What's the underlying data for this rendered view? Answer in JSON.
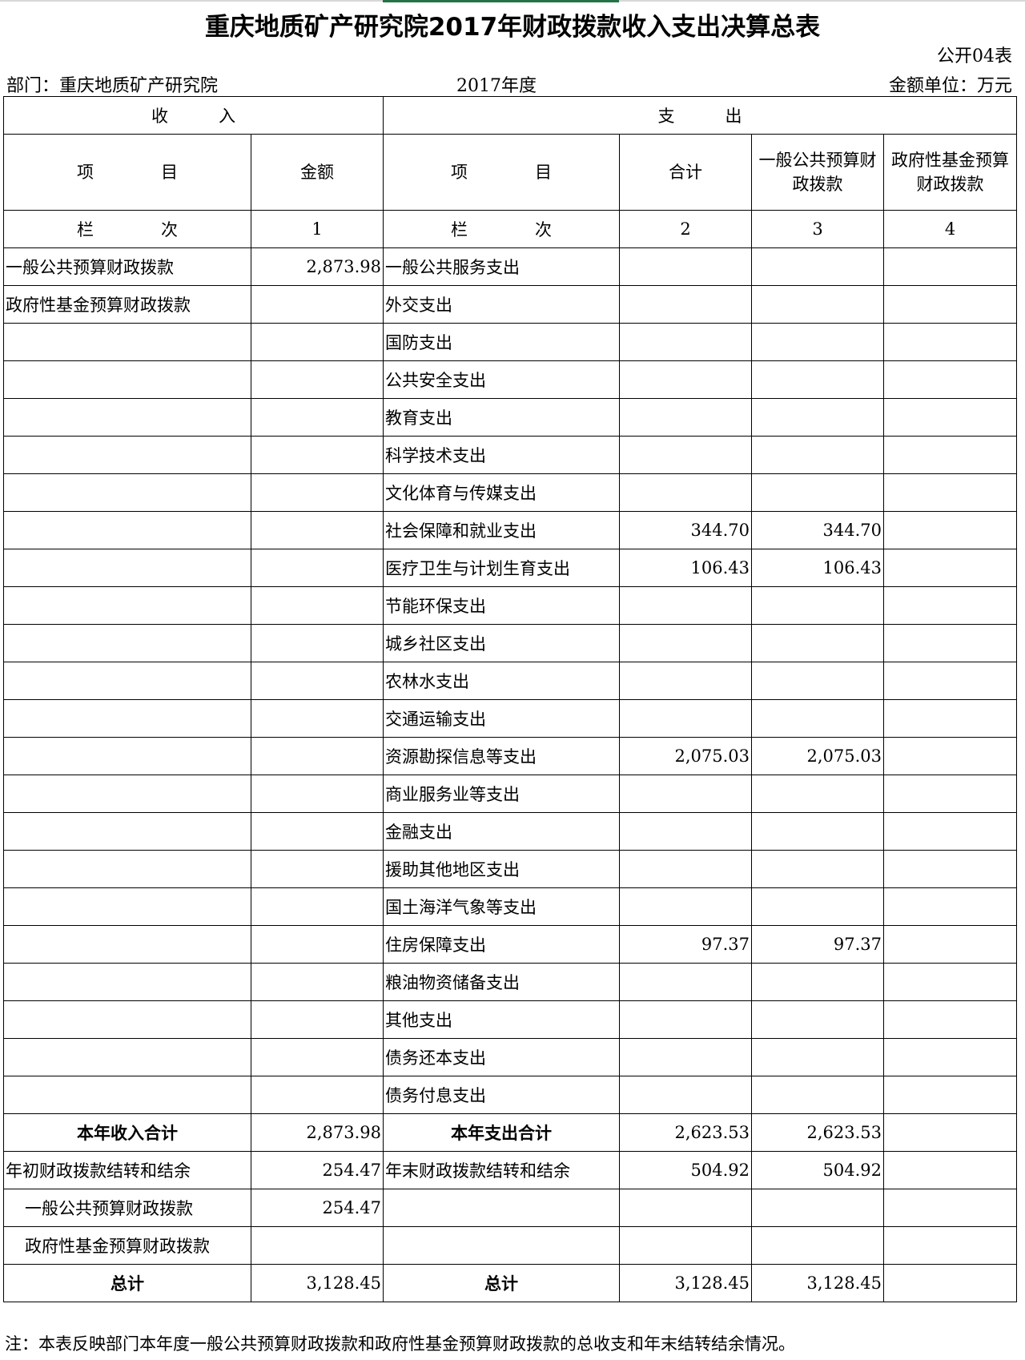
{
  "title": "重庆地质矿产研究院2017年财政拨款收入支出决算总表",
  "form_no": "公开04表",
  "department": "部门：重庆地质矿产研究院",
  "year": "2017年度",
  "unit": "金额单位：万元",
  "headers": {
    "income": "收　　　入",
    "expense": "支　　　出",
    "item": "项　　　　目",
    "amount": "金额",
    "item2": "项　　　　目",
    "total": "合计",
    "general": "一般公共预算财政拨款",
    "fund": "政府性基金预算财政拨款",
    "col_label": "栏　　　　次",
    "col_label2": "栏　　　　次",
    "c1": "1",
    "c2": "2",
    "c3": "3",
    "c4": "4"
  },
  "rows": [
    {
      "in_item": "一般公共预算财政拨款",
      "in_amt": "2,873.98",
      "ex_item": "一般公共服务支出",
      "total": "",
      "general": "",
      "fund": ""
    },
    {
      "in_item": "政府性基金预算财政拨款",
      "in_amt": "",
      "ex_item": "外交支出",
      "total": "",
      "general": "",
      "fund": ""
    },
    {
      "in_item": "",
      "in_amt": "",
      "ex_item": "国防支出",
      "total": "",
      "general": "",
      "fund": ""
    },
    {
      "in_item": "",
      "in_amt": "",
      "ex_item": "公共安全支出",
      "total": "",
      "general": "",
      "fund": ""
    },
    {
      "in_item": "",
      "in_amt": "",
      "ex_item": "教育支出",
      "total": "",
      "general": "",
      "fund": ""
    },
    {
      "in_item": "",
      "in_amt": "",
      "ex_item": "科学技术支出",
      "total": "",
      "general": "",
      "fund": ""
    },
    {
      "in_item": "",
      "in_amt": "",
      "ex_item": "文化体育与传媒支出",
      "total": "",
      "general": "",
      "fund": ""
    },
    {
      "in_item": "",
      "in_amt": "",
      "ex_item": "社会保障和就业支出",
      "total": "344.70",
      "general": "344.70",
      "fund": ""
    },
    {
      "in_item": "",
      "in_amt": "",
      "ex_item": "医疗卫生与计划生育支出",
      "total": "106.43",
      "general": "106.43",
      "fund": ""
    },
    {
      "in_item": "",
      "in_amt": "",
      "ex_item": "节能环保支出",
      "total": "",
      "general": "",
      "fund": ""
    },
    {
      "in_item": "",
      "in_amt": "",
      "ex_item": "城乡社区支出",
      "total": "",
      "general": "",
      "fund": ""
    },
    {
      "in_item": "",
      "in_amt": "",
      "ex_item": "农林水支出",
      "total": "",
      "general": "",
      "fund": ""
    },
    {
      "in_item": "",
      "in_amt": "",
      "ex_item": "交通运输支出",
      "total": "",
      "general": "",
      "fund": ""
    },
    {
      "in_item": "",
      "in_amt": "",
      "ex_item": "资源勘探信息等支出",
      "total": "2,075.03",
      "general": "2,075.03",
      "fund": ""
    },
    {
      "in_item": "",
      "in_amt": "",
      "ex_item": "商业服务业等支出",
      "total": "",
      "general": "",
      "fund": ""
    },
    {
      "in_item": "",
      "in_amt": "",
      "ex_item": "金融支出",
      "total": "",
      "general": "",
      "fund": ""
    },
    {
      "in_item": "",
      "in_amt": "",
      "ex_item": "援助其他地区支出",
      "total": "",
      "general": "",
      "fund": ""
    },
    {
      "in_item": "",
      "in_amt": "",
      "ex_item": "国土海洋气象等支出",
      "total": "",
      "general": "",
      "fund": ""
    },
    {
      "in_item": "",
      "in_amt": "",
      "ex_item": "住房保障支出",
      "total": "97.37",
      "general": "97.37",
      "fund": ""
    },
    {
      "in_item": "",
      "in_amt": "",
      "ex_item": "粮油物资储备支出",
      "total": "",
      "general": "",
      "fund": ""
    },
    {
      "in_item": "",
      "in_amt": "",
      "ex_item": "其他支出",
      "total": "",
      "general": "",
      "fund": ""
    },
    {
      "in_item": "",
      "in_amt": "",
      "ex_item": "债务还本支出",
      "total": "",
      "general": "",
      "fund": ""
    },
    {
      "in_item": "",
      "in_amt": "",
      "ex_item": "债务付息支出",
      "total": "",
      "general": "",
      "fund": ""
    }
  ],
  "summary": [
    {
      "in_item": "本年收入合计",
      "in_amt": "2,873.98",
      "ex_item": "本年支出合计",
      "total": "2,623.53",
      "general": "2,623.53",
      "fund": "",
      "style": "bold"
    },
    {
      "in_item": "年初财政拨款结转和结余",
      "in_amt": "254.47",
      "ex_item": "年末财政拨款结转和结余",
      "total": "504.92",
      "general": "504.92",
      "fund": "",
      "style": "normal"
    },
    {
      "in_item": "一般公共预算财政拨款",
      "in_amt": "254.47",
      "ex_item": "",
      "total": "",
      "general": "",
      "fund": "",
      "style": "indent"
    },
    {
      "in_item": "政府性基金预算财政拨款",
      "in_amt": "",
      "ex_item": "",
      "total": "",
      "general": "",
      "fund": "",
      "style": "indent"
    },
    {
      "in_item": "总计",
      "in_amt": "3,128.45",
      "ex_item": "总计",
      "total": "3,128.45",
      "general": "3,128.45",
      "fund": "",
      "style": "bold"
    }
  ],
  "note": "注：本表反映部门本年度一般公共预算财政拨款和政府性基金预算财政拨款的总收支和年末结转结余情况。"
}
